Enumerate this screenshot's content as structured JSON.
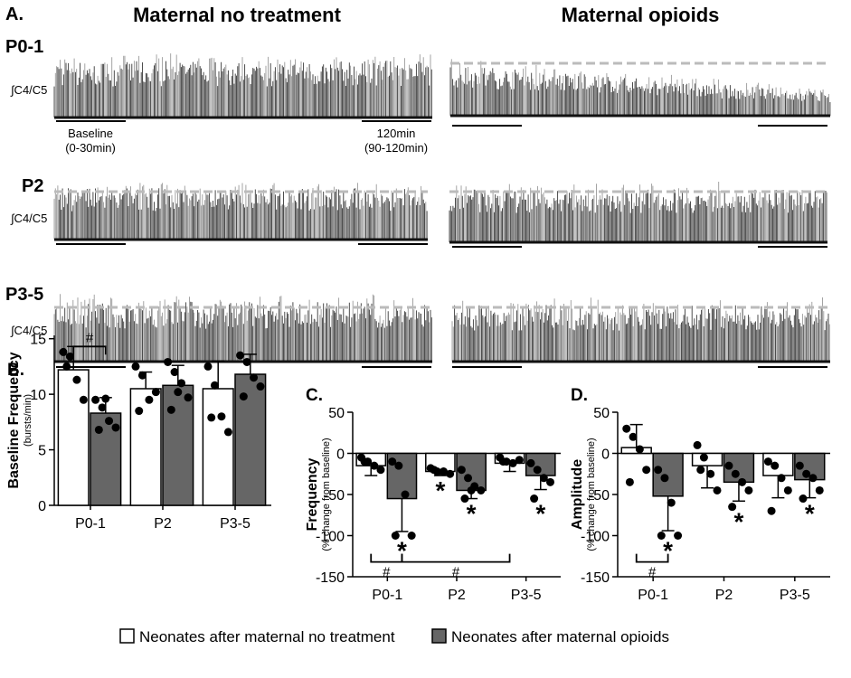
{
  "panel_a": {
    "label": "A.",
    "column_titles": [
      "Maternal no treatment",
      "Maternal opioids"
    ],
    "row_labels": [
      "P0-1",
      "P2",
      "P3-5"
    ],
    "trace_label": "∫C4/C5",
    "scale_labels": [
      "Baseline",
      "(0-30min)",
      "120min",
      "(90-120min)"
    ]
  },
  "chart_data": [
    {
      "type": "bar",
      "panel": "B.",
      "ylabel": "Baseline Frequency",
      "ylabel_sub": "(bursts/min)",
      "categories": [
        "P0-1",
        "P2",
        "P3-5"
      ],
      "ylim": [
        0,
        15.3
      ],
      "yticks": [
        0,
        5,
        10,
        15
      ],
      "annotations": [
        "#"
      ],
      "series": [
        {
          "name": "Neonates after maternal no treatment",
          "color": "#ffffff",
          "values": [
            12.2,
            10.5,
            10.5
          ],
          "errors": [
            2.1,
            1.5,
            2.5
          ],
          "points": [
            [
              13.8,
              13.4,
              11.3,
              9.5,
              12.5
            ],
            [
              12.5,
              11.7,
              9.5,
              10.2,
              8.5
            ],
            [
              12.5,
              10.8,
              8.0,
              6.6,
              7.9
            ]
          ]
        },
        {
          "name": "Neonates after maternal opioids",
          "color": "#666666",
          "values": [
            8.3,
            10.8,
            11.8
          ],
          "errors": [
            1.4,
            1.8,
            1.8
          ],
          "points": [
            [
              9.5,
              8.8,
              7.6,
              7.0,
              6.8,
              9.6
            ],
            [
              12.9,
              12.0,
              11.0,
              9.7,
              8.6,
              10.2
            ],
            [
              13.5,
              12.9,
              11.5,
              10.7,
              9.8
            ]
          ]
        }
      ]
    },
    {
      "type": "bar",
      "panel": "C.",
      "ylabel": "Frequency",
      "ylabel_sub": "(% change from baseline)",
      "categories": [
        "P0-1",
        "P2",
        "P3-5"
      ],
      "ylim": [
        -150,
        50
      ],
      "yticks": [
        -150,
        -100,
        -50,
        0,
        50
      ],
      "annotations": [
        "#",
        "#"
      ],
      "series": [
        {
          "name": "Neonates after maternal no treatment",
          "color": "#ffffff",
          "values": [
            -15,
            -22,
            -12
          ],
          "errors": [
            12,
            5,
            10
          ],
          "value_markers": [
            null,
            "*",
            null
          ],
          "points": [
            [
              -5,
              -10,
              -15,
              -20,
              -10
            ],
            [
              -18,
              -22,
              -22,
              -25,
              -20
            ],
            [
              -5,
              -10,
              -12,
              -8,
              -10
            ]
          ]
        },
        {
          "name": "Neonates after maternal opioids",
          "color": "#666666",
          "values": [
            -55,
            -45,
            -27
          ],
          "errors": [
            40,
            10,
            17
          ],
          "value_markers": [
            "*",
            "*",
            "*"
          ],
          "points": [
            [
              -10,
              -15,
              -50,
              -100,
              -100
            ],
            [
              -20,
              -30,
              -40,
              -45,
              -55,
              -45
            ],
            [
              -12,
              -20,
              -30,
              -35,
              -55
            ]
          ]
        }
      ]
    },
    {
      "type": "bar",
      "panel": "D.",
      "ylabel": "Amplitude",
      "ylabel_sub": "(% change from baseline)",
      "categories": [
        "P0-1",
        "P2",
        "P3-5"
      ],
      "ylim": [
        -150,
        50
      ],
      "yticks": [
        -150,
        -100,
        -50,
        0,
        50
      ],
      "annotations": [
        "#"
      ],
      "series": [
        {
          "name": "Neonates after maternal no treatment",
          "color": "#ffffff",
          "values": [
            7,
            -15,
            -27
          ],
          "errors": [
            28,
            27,
            27
          ],
          "points": [
            [
              30,
              20,
              5,
              -20,
              -35
            ],
            [
              10,
              -5,
              -25,
              -45,
              -20
            ],
            [
              -10,
              -15,
              -30,
              -45,
              -70
            ]
          ]
        },
        {
          "name": "Neonates after maternal opioids",
          "color": "#666666",
          "values": [
            -52,
            -35,
            -32
          ],
          "errors": [
            42,
            23,
            22
          ],
          "value_markers": [
            "*",
            "*",
            "*"
          ],
          "points": [
            [
              -20,
              -30,
              -60,
              -100,
              -100
            ],
            [
              -15,
              -25,
              -35,
              -45,
              -65
            ],
            [
              -15,
              -25,
              -30,
              -45,
              -55
            ]
          ]
        }
      ]
    }
  ]
}
